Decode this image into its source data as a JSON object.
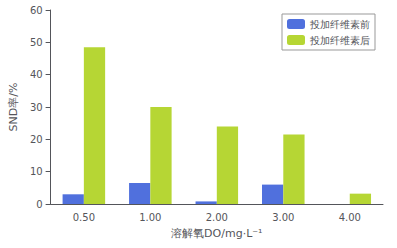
{
  "chart_data": {
    "type": "bar",
    "categories": [
      "0.50",
      "1.00",
      "2.00",
      "3.00",
      "4.00"
    ],
    "series": [
      {
        "name": "投加纤维素前",
        "values": [
          3.0,
          6.5,
          0.8,
          6.0,
          0.0
        ]
      },
      {
        "name": "投加纤维素后",
        "values": [
          48.5,
          30.0,
          24.0,
          21.5,
          3.2
        ]
      }
    ],
    "xlabel": "溶解氧DO/mg·L⁻¹",
    "ylabel": "SND率/%",
    "ylim": [
      0,
      60
    ],
    "yticks": [
      0,
      10,
      20,
      30,
      40,
      50,
      60
    ],
    "grid": false,
    "legend": "upper right"
  }
}
